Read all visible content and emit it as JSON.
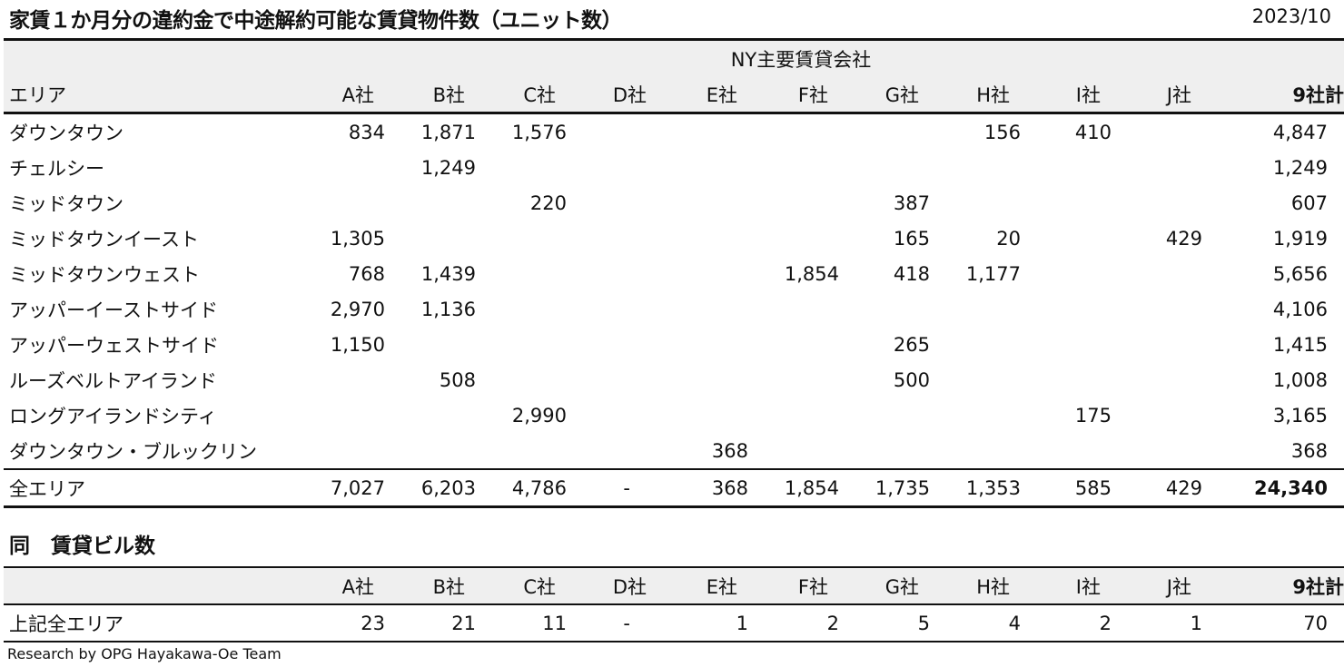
{
  "title": "家賃１か月分の違約金で中途解約可能な賃貸物件数（ユニット数）",
  "date": "2023/10",
  "table1": {
    "group_header": "NY主要賃貸会社",
    "area_header": "エリア",
    "columns": [
      "A社",
      "B社",
      "C社",
      "D社",
      "E社",
      "F社",
      "G社",
      "H社",
      "I社",
      "J社",
      "9社計"
    ],
    "rows": [
      {
        "area": "ダウンタウン",
        "values": [
          "834",
          "1,871",
          "1,576",
          "",
          "",
          "",
          "",
          "156",
          "410",
          "",
          "4,847"
        ]
      },
      {
        "area": "チェルシー",
        "values": [
          "",
          "1,249",
          "",
          "",
          "",
          "",
          "",
          "",
          "",
          "",
          "1,249"
        ]
      },
      {
        "area": "ミッドタウン",
        "values": [
          "",
          "",
          "220",
          "",
          "",
          "",
          "387",
          "",
          "",
          "",
          "607"
        ]
      },
      {
        "area": "ミッドタウンイースト",
        "values": [
          "1,305",
          "",
          "",
          "",
          "",
          "",
          "165",
          "20",
          "",
          "429",
          "1,919"
        ]
      },
      {
        "area": "ミッドタウンウェスト",
        "values": [
          "768",
          "1,439",
          "",
          "",
          "",
          "1,854",
          "418",
          "1,177",
          "",
          "",
          "5,656"
        ]
      },
      {
        "area": "アッパーイーストサイド",
        "values": [
          "2,970",
          "1,136",
          "",
          "",
          "",
          "",
          "",
          "",
          "",
          "",
          "4,106"
        ]
      },
      {
        "area": "アッパーウェストサイド",
        "values": [
          "1,150",
          "",
          "",
          "",
          "",
          "",
          "265",
          "",
          "",
          "",
          "1,415"
        ]
      },
      {
        "area": "ルーズベルトアイランド",
        "values": [
          "",
          "508",
          "",
          "",
          "",
          "",
          "500",
          "",
          "",
          "",
          "1,008"
        ]
      },
      {
        "area": "ロングアイランドシティ",
        "values": [
          "",
          "",
          "2,990",
          "",
          "",
          "",
          "",
          "",
          "175",
          "",
          "3,165"
        ]
      },
      {
        "area": "ダウンタウン・ブルックリン",
        "values": [
          "",
          "",
          "",
          "",
          "368",
          "",
          "",
          "",
          "",
          "",
          "368"
        ]
      }
    ],
    "total": {
      "area": "全エリア",
      "values": [
        "7,027",
        "6,203",
        "4,786",
        "-",
        "368",
        "1,854",
        "1,735",
        "1,353",
        "585",
        "429",
        "24,340"
      ]
    }
  },
  "table2": {
    "title": "同　賃貸ビル数",
    "columns": [
      "A社",
      "B社",
      "C社",
      "D社",
      "E社",
      "F社",
      "G社",
      "H社",
      "I社",
      "J社",
      "9社計"
    ],
    "row": {
      "area": "上記全エリア",
      "values": [
        "23",
        "21",
        "11",
        "-",
        "1",
        "2",
        "5",
        "4",
        "2",
        "1",
        "70"
      ]
    }
  },
  "footer": "Research by OPG Hayakawa-Oe Team"
}
